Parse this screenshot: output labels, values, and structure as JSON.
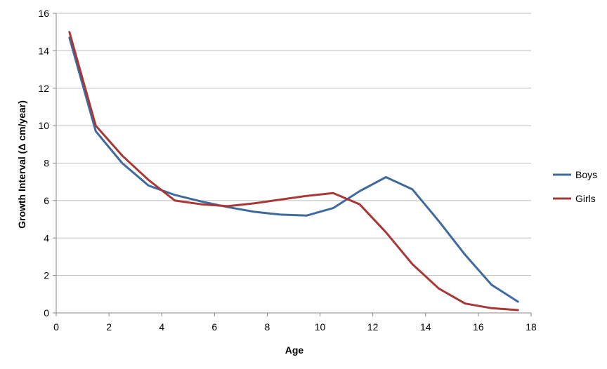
{
  "chart_data": {
    "type": "line",
    "title": "",
    "xlabel": "Age",
    "ylabel": "Growth Interval (Δ cm/year)",
    "xlim": [
      0,
      18
    ],
    "ylim": [
      0,
      16
    ],
    "x_ticks": [
      "0",
      "2",
      "4",
      "6",
      "8",
      "10",
      "12",
      "14",
      "16",
      "18"
    ],
    "y_ticks": [
      "0",
      "2",
      "4",
      "6",
      "8",
      "10",
      "12",
      "14",
      "16"
    ],
    "grid": "horizontal",
    "legend_position": "right",
    "x": [
      0.5,
      1.5,
      2.5,
      3.5,
      4.5,
      5.5,
      6.5,
      7.5,
      8.5,
      9.5,
      10.5,
      11.5,
      12.5,
      13.5,
      14.5,
      15.5,
      16.5,
      17.5
    ],
    "series": [
      {
        "name": "Boys",
        "color": "#3E6A9E",
        "values": [
          14.7,
          9.7,
          8.0,
          6.8,
          6.3,
          5.95,
          5.65,
          5.4,
          5.25,
          5.2,
          5.6,
          6.5,
          7.25,
          6.6,
          4.9,
          3.1,
          1.5,
          0.6
        ]
      },
      {
        "name": "Girls",
        "color": "#A83836",
        "values": [
          15.0,
          10.0,
          8.4,
          7.1,
          6.0,
          5.8,
          5.7,
          5.85,
          6.05,
          6.25,
          6.4,
          5.8,
          4.3,
          2.6,
          1.3,
          0.5,
          0.25,
          0.15
        ]
      }
    ]
  }
}
